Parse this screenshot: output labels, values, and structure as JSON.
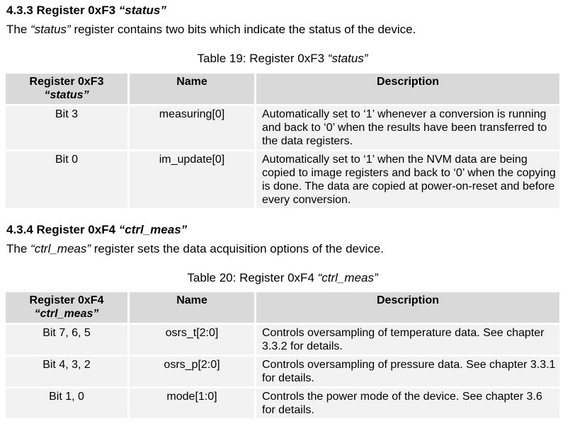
{
  "section1": {
    "heading_prefix": "4.3.3 Register 0xF3 ",
    "heading_name": "“status”",
    "intro_pre": "The ",
    "intro_name": "“status”",
    "intro_post": " register contains two bits which indicate the status of the device.",
    "caption_prefix": "Table 19: Register 0xF3 ",
    "caption_name": "“status”",
    "table": {
      "header": {
        "col1_line1": "Register 0xF3",
        "col1_line2": "“status”",
        "col2": "Name",
        "col3": "Description"
      },
      "rows": [
        {
          "bit": "Bit 3",
          "name": "measuring[0]",
          "description": "Automatically set to ‘1’ whenever a conversion is running and back to ‘0’ when the results have been transferred to the data registers."
        },
        {
          "bit": "Bit 0",
          "name": "im_update[0]",
          "description": "Automatically set to ‘1’ when the NVM data are being copied to image registers and back to ‘0’ when the copying is done. The data are copied at power-on-reset and before every conversion."
        }
      ]
    }
  },
  "section2": {
    "heading_prefix": "4.3.4 Register 0xF4 ",
    "heading_name": "“ctrl_meas”",
    "intro_pre": "The ",
    "intro_name": "“ctrl_meas”",
    "intro_post": " register sets the data acquisition options of the device.",
    "caption_prefix": "Table 20: Register 0xF4 ",
    "caption_name": "“ctrl_meas”",
    "table": {
      "header": {
        "col1_line1": "Register 0xF4",
        "col1_line2": "“ctrl_meas”",
        "col2": "Name",
        "col3": "Description"
      },
      "rows": [
        {
          "bit": "Bit 7, 6, 5",
          "name": "osrs_t[2:0]",
          "description": "Controls oversampling of temperature data. See chapter 3.3.2 for details."
        },
        {
          "bit": "Bit 4, 3, 2",
          "name": "osrs_p[2:0]",
          "description": "Controls oversampling of pressure data. See chapter 3.3.1 for details."
        },
        {
          "bit": "Bit 1, 0",
          "name": "mode[1:0]",
          "description": "Controls the power mode of the device. See chapter 3.6 for details."
        }
      ]
    }
  }
}
